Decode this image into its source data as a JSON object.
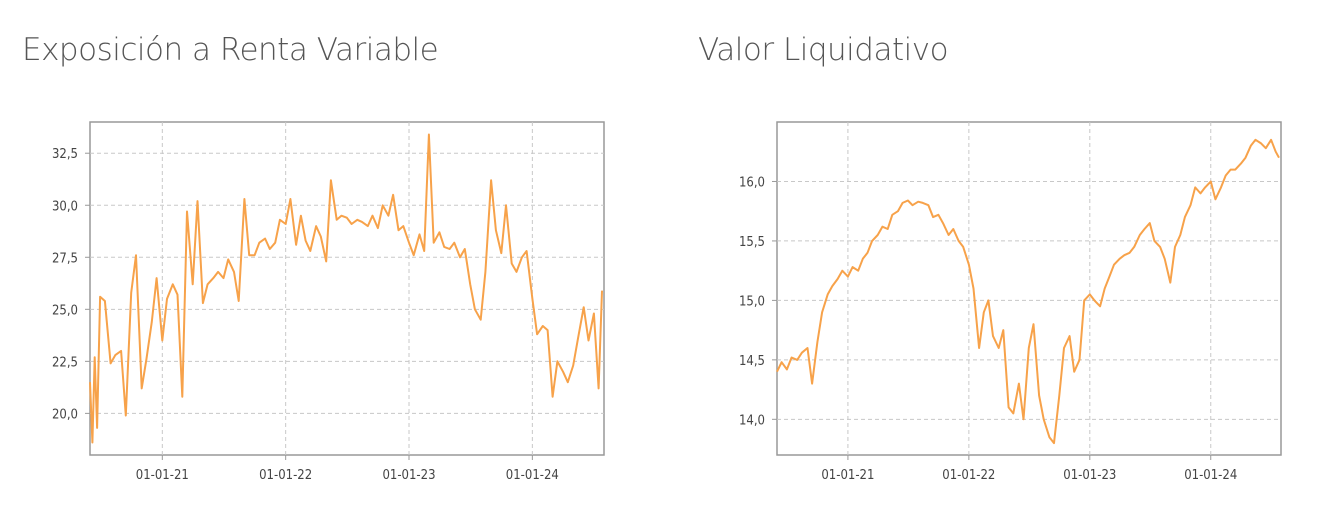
{
  "chart_data": [
    {
      "type": "line",
      "title": "Exposición a Renta Variable",
      "xlabel": "",
      "ylabel": "",
      "x_tick_labels": [
        "01-01-21",
        "01-01-22",
        "01-01-23",
        "01-01-24"
      ],
      "x_tick_dates": [
        "2021-01-01",
        "2022-01-01",
        "2023-01-01",
        "2024-01-01"
      ],
      "xlim": [
        "2020-06-01",
        "2024-07-31"
      ],
      "y_tick_labels": [
        "20,0",
        "22,5",
        "25,0",
        "27,5",
        "30,0",
        "32,5"
      ],
      "y_ticks": [
        20,
        22.5,
        25,
        27.5,
        30,
        32.5
      ],
      "ylim": [
        18.0,
        34.0
      ],
      "grid": true,
      "line_color": "#f7a24a",
      "series": [
        {
          "x": [
            "2020-06-01",
            "2020-06-08",
            "2020-06-15",
            "2020-06-22",
            "2020-07-01",
            "2020-07-15",
            "2020-08-01",
            "2020-08-15",
            "2020-09-01",
            "2020-09-15",
            "2020-10-01",
            "2020-10-15",
            "2020-11-01",
            "2020-11-15",
            "2020-12-01",
            "2020-12-15",
            "2021-01-01",
            "2021-01-15",
            "2021-02-01",
            "2021-02-15",
            "2021-03-01",
            "2021-03-15",
            "2021-04-01",
            "2021-04-15",
            "2021-05-01",
            "2021-05-15",
            "2021-06-01",
            "2021-06-15",
            "2021-07-01",
            "2021-07-15",
            "2021-08-01",
            "2021-08-15",
            "2021-09-01",
            "2021-09-15",
            "2021-10-01",
            "2021-10-15",
            "2021-11-01",
            "2021-11-15",
            "2021-12-01",
            "2021-12-15",
            "2022-01-01",
            "2022-01-15",
            "2022-02-01",
            "2022-02-15",
            "2022-03-01",
            "2022-03-15",
            "2022-04-01",
            "2022-04-15",
            "2022-05-01",
            "2022-05-15",
            "2022-06-01",
            "2022-06-15",
            "2022-07-01",
            "2022-07-15",
            "2022-08-01",
            "2022-08-15",
            "2022-09-01",
            "2022-09-15",
            "2022-10-01",
            "2022-10-15",
            "2022-11-01",
            "2022-11-15",
            "2022-12-01",
            "2022-12-15",
            "2023-01-01",
            "2023-01-15",
            "2023-02-01",
            "2023-02-15",
            "2023-03-01",
            "2023-03-15",
            "2023-04-01",
            "2023-04-15",
            "2023-05-01",
            "2023-05-15",
            "2023-06-01",
            "2023-06-15",
            "2023-07-01",
            "2023-07-15",
            "2023-08-01",
            "2023-08-15",
            "2023-09-01",
            "2023-09-15",
            "2023-10-01",
            "2023-10-15",
            "2023-11-01",
            "2023-11-15",
            "2023-12-01",
            "2023-12-15",
            "2024-01-01",
            "2024-01-15",
            "2024-02-01",
            "2024-02-15",
            "2024-03-01",
            "2024-03-15",
            "2024-04-01",
            "2024-04-15",
            "2024-05-01",
            "2024-05-15",
            "2024-06-01",
            "2024-06-15",
            "2024-07-01",
            "2024-07-15",
            "2024-07-25"
          ],
          "y": [
            21.5,
            18.6,
            22.7,
            19.3,
            25.6,
            25.4,
            22.4,
            22.8,
            23.0,
            19.9,
            25.8,
            27.6,
            21.2,
            22.6,
            24.4,
            26.5,
            23.5,
            25.5,
            26.2,
            25.7,
            20.8,
            29.7,
            26.2,
            30.2,
            25.3,
            26.2,
            26.5,
            26.8,
            26.5,
            27.4,
            26.8,
            25.4,
            30.3,
            27.6,
            27.6,
            28.2,
            28.4,
            27.9,
            28.2,
            29.3,
            29.1,
            30.3,
            28.1,
            29.5,
            28.3,
            27.8,
            29.0,
            28.5,
            27.3,
            31.2,
            29.3,
            29.5,
            29.4,
            29.1,
            29.3,
            29.2,
            29.0,
            29.5,
            28.9,
            30.0,
            29.5,
            30.5,
            28.8,
            29.0,
            28.2,
            27.6,
            28.6,
            27.8,
            33.4,
            28.2,
            28.7,
            28.0,
            27.9,
            28.2,
            27.5,
            27.9,
            26.2,
            25.0,
            24.5,
            26.8,
            31.2,
            28.8,
            27.7,
            30.0,
            27.2,
            26.8,
            27.5,
            27.8,
            25.5,
            23.8,
            24.2,
            24.0,
            20.8,
            22.5,
            22.0,
            21.5,
            22.3,
            23.6,
            25.1,
            23.5,
            24.8,
            21.2,
            25.9
          ]
        }
      ]
    },
    {
      "type": "line",
      "title": "Valor Liquidativo",
      "xlabel": "",
      "ylabel": "",
      "x_tick_labels": [
        "01-01-21",
        "01-01-22",
        "01-01-23",
        "01-01-24"
      ],
      "x_tick_dates": [
        "2021-01-01",
        "2022-01-01",
        "2023-01-01",
        "2024-01-01"
      ],
      "xlim": [
        "2020-06-01",
        "2024-07-31"
      ],
      "y_tick_labels": [
        "14,0",
        "14,5",
        "15,0",
        "15,5",
        "16,0"
      ],
      "y_ticks": [
        14.0,
        14.5,
        15.0,
        15.5,
        16.0
      ],
      "ylim": [
        13.7,
        16.5
      ],
      "grid": true,
      "line_color": "#f7a24a",
      "series": [
        {
          "x": [
            "2020-06-01",
            "2020-06-15",
            "2020-07-01",
            "2020-07-15",
            "2020-08-01",
            "2020-08-15",
            "2020-09-01",
            "2020-09-15",
            "2020-10-01",
            "2020-10-15",
            "2020-11-01",
            "2020-11-15",
            "2020-12-01",
            "2020-12-15",
            "2021-01-01",
            "2021-01-15",
            "2021-02-01",
            "2021-02-15",
            "2021-03-01",
            "2021-03-15",
            "2021-04-01",
            "2021-04-15",
            "2021-05-01",
            "2021-05-15",
            "2021-06-01",
            "2021-06-15",
            "2021-07-01",
            "2021-07-15",
            "2021-08-01",
            "2021-08-15",
            "2021-09-01",
            "2021-09-15",
            "2021-10-01",
            "2021-10-15",
            "2021-11-01",
            "2021-11-15",
            "2021-12-01",
            "2021-12-15",
            "2022-01-01",
            "2022-01-15",
            "2022-02-01",
            "2022-02-15",
            "2022-03-01",
            "2022-03-15",
            "2022-04-01",
            "2022-04-15",
            "2022-05-01",
            "2022-05-15",
            "2022-06-01",
            "2022-06-15",
            "2022-07-01",
            "2022-07-15",
            "2022-08-01",
            "2022-08-15",
            "2022-09-01",
            "2022-09-15",
            "2022-10-01",
            "2022-10-15",
            "2022-11-01",
            "2022-11-15",
            "2022-12-01",
            "2022-12-15",
            "2023-01-01",
            "2023-01-15",
            "2023-02-01",
            "2023-02-15",
            "2023-03-01",
            "2023-03-15",
            "2023-04-01",
            "2023-04-15",
            "2023-05-01",
            "2023-05-15",
            "2023-06-01",
            "2023-06-15",
            "2023-07-01",
            "2023-07-15",
            "2023-08-01",
            "2023-08-15",
            "2023-09-01",
            "2023-09-15",
            "2023-10-01",
            "2023-10-15",
            "2023-11-01",
            "2023-11-15",
            "2023-12-01",
            "2023-12-15",
            "2024-01-01",
            "2024-01-15",
            "2024-02-01",
            "2024-02-15",
            "2024-03-01",
            "2024-03-15",
            "2024-04-01",
            "2024-04-15",
            "2024-05-01",
            "2024-05-15",
            "2024-06-01",
            "2024-06-15",
            "2024-07-01",
            "2024-07-15",
            "2024-07-25"
          ],
          "y": [
            14.4,
            14.48,
            14.42,
            14.52,
            14.5,
            14.56,
            14.6,
            14.3,
            14.65,
            14.9,
            15.05,
            15.12,
            15.18,
            15.25,
            15.2,
            15.28,
            15.25,
            15.35,
            15.4,
            15.5,
            15.55,
            15.62,
            15.6,
            15.72,
            15.75,
            15.82,
            15.84,
            15.8,
            15.83,
            15.82,
            15.8,
            15.7,
            15.72,
            15.65,
            15.55,
            15.6,
            15.5,
            15.45,
            15.3,
            15.1,
            14.6,
            14.9,
            15.0,
            14.7,
            14.6,
            14.75,
            14.1,
            14.05,
            14.3,
            14.0,
            14.6,
            14.8,
            14.2,
            14.0,
            13.85,
            13.8,
            14.2,
            14.6,
            14.7,
            14.4,
            14.5,
            15.0,
            15.05,
            15.0,
            14.95,
            15.1,
            15.2,
            15.3,
            15.35,
            15.38,
            15.4,
            15.45,
            15.55,
            15.6,
            15.65,
            15.5,
            15.45,
            15.35,
            15.15,
            15.45,
            15.55,
            15.7,
            15.8,
            15.95,
            15.9,
            15.95,
            16.0,
            15.85,
            15.95,
            16.05,
            16.1,
            16.1,
            16.15,
            16.2,
            16.3,
            16.35,
            16.32,
            16.28,
            16.35,
            16.25,
            16.2
          ]
        }
      ]
    }
  ]
}
